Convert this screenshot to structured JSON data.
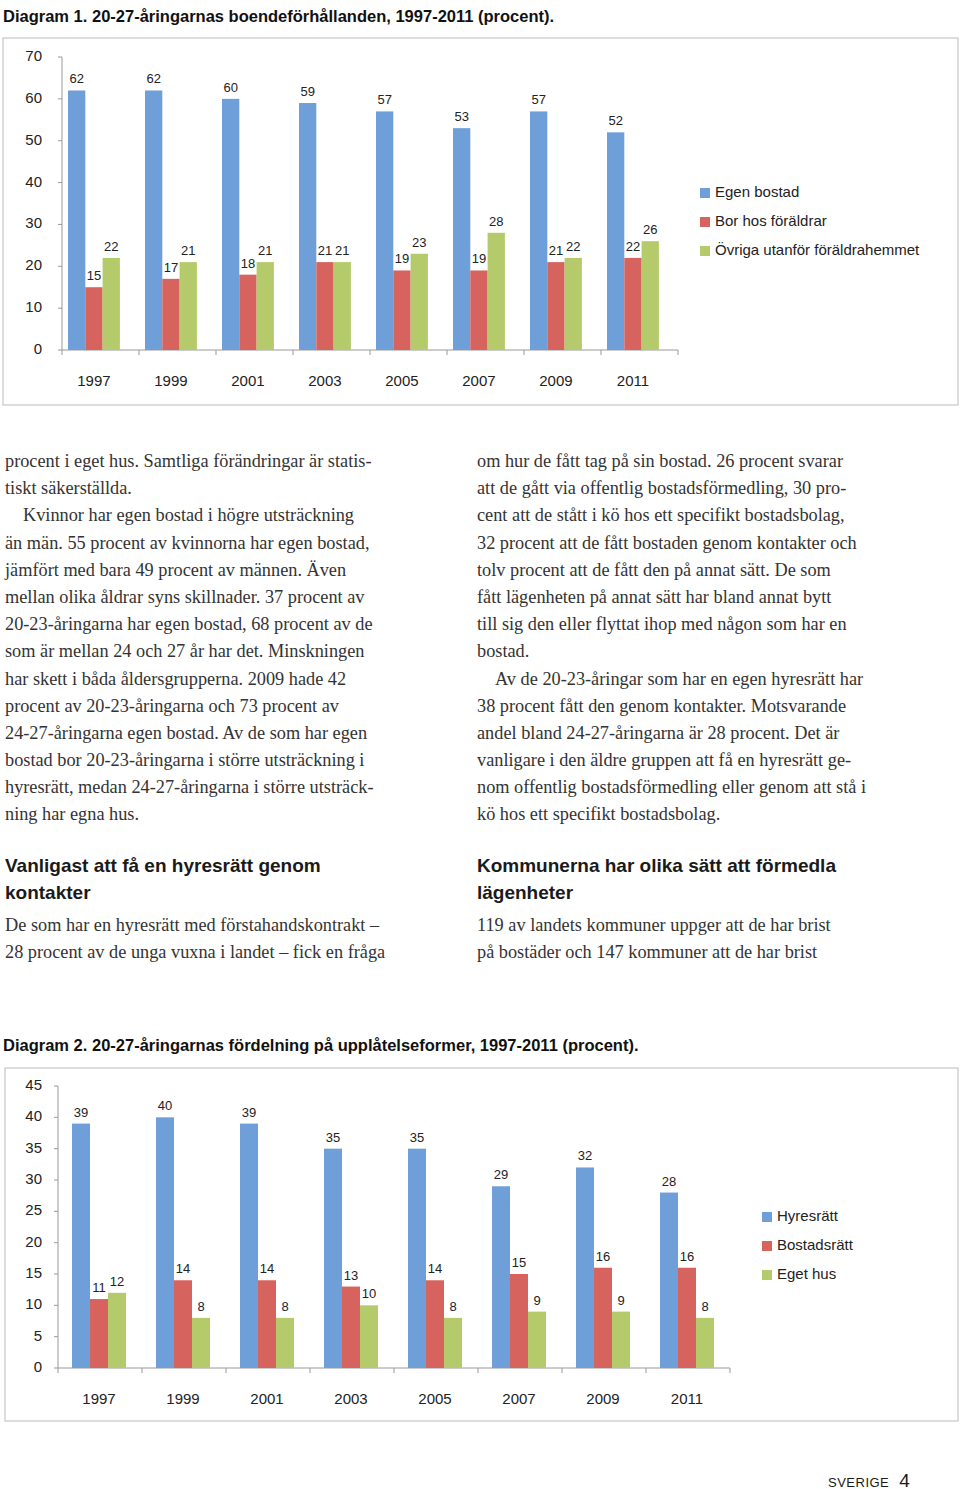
{
  "chart_data": [
    {
      "type": "bar",
      "title": "Diagram 1. 20-27-åringarnas boendeförhållanden, 1997-2011 (procent).",
      "categories": [
        "1997",
        "1999",
        "2001",
        "2003",
        "2005",
        "2007",
        "2009",
        "2011"
      ],
      "series": [
        {
          "name": "Egen bostad",
          "color": "#6f9fd8",
          "values": [
            62,
            62,
            60,
            59,
            57,
            53,
            57,
            52
          ]
        },
        {
          "name": "Bor hos föräldrar",
          "color": "#d7635e",
          "values": [
            15,
            17,
            18,
            21,
            19,
            19,
            21,
            22
          ]
        },
        {
          "name": "Övriga utanför föräldrahemmet",
          "color": "#b5cb6b",
          "values": [
            22,
            21,
            21,
            21,
            23,
            28,
            22,
            26
          ]
        }
      ],
      "ylim": [
        0,
        70
      ],
      "yticks": [
        0,
        10,
        20,
        30,
        40,
        50,
        60,
        70
      ],
      "grid": false,
      "legend": "right",
      "data_labels": true
    },
    {
      "type": "bar",
      "title": "Diagram 2. 20-27-åringarnas fördelning på upplåtelseformer, 1997-2011 (procent).",
      "categories": [
        "1997",
        "1999",
        "2001",
        "2003",
        "2005",
        "2007",
        "2009",
        "2011"
      ],
      "series": [
        {
          "name": "Hyresrätt",
          "color": "#6f9fd8",
          "values": [
            39,
            40,
            39,
            35,
            35,
            29,
            32,
            28
          ]
        },
        {
          "name": "Bostadsrätt",
          "color": "#d7635e",
          "values": [
            11,
            14,
            14,
            13,
            14,
            15,
            16,
            16
          ]
        },
        {
          "name": "Eget hus",
          "color": "#b5cb6b",
          "values": [
            12,
            8,
            8,
            10,
            8,
            9,
            9,
            8
          ]
        }
      ],
      "ylim": [
        0,
        45
      ],
      "yticks": [
        0,
        5,
        10,
        15,
        20,
        25,
        30,
        35,
        40,
        45
      ],
      "grid": false,
      "legend": "right",
      "data_labels": true
    }
  ],
  "columns": [
    {
      "blocks": [
        {
          "type": "paragraph",
          "indent": false,
          "lines": [
            "procent i eget hus. Samtliga förändringar är statis-",
            "tiskt säkerställda."
          ]
        },
        {
          "type": "paragraph",
          "indent": true,
          "lines": [
            "Kvinnor har egen bostad i högre utsträckning",
            "än män. 55 procent av kvinnorna har egen bostad,",
            "jämfört med bara 49 procent av männen. Även",
            "mellan olika åldrar syns skillnader. 37 procent av",
            "20-23-åringarna har egen bostad, 68 procent av de",
            "som är mellan 24 och 27 år har det. Minskningen",
            "har skett i båda åldersgrupperna. 2009 hade 42",
            "procent av 20-23-åringarna och 73 procent av",
            "24-27-åringarna egen bostad. Av de som har egen",
            "bostad bor 20-23-åringarna i större utsträckning i",
            "hyresrätt, medan 24-27-åringarna i större utsträck-",
            "ning har egna hus."
          ]
        },
        {
          "type": "heading",
          "lines": [
            "Vanligast att få en hyresrätt genom",
            "kontakter"
          ]
        },
        {
          "type": "paragraph",
          "indent": false,
          "lines": [
            "De som har en hyresrätt med förstahandskontrakt –",
            "28 procent av de unga vuxna i landet – fick en fråga"
          ]
        }
      ]
    },
    {
      "blocks": [
        {
          "type": "paragraph",
          "indent": false,
          "lines": [
            "om hur de fått tag på sin bostad. 26 procent svarar",
            "att de gått via offentlig bostadsförmedling, 30 pro-",
            "cent att de stått i kö hos ett specifikt bostadsbolag,",
            "32 procent att de fått bostaden genom kontakter och",
            "tolv procent att de fått den på annat sätt. De som",
            "fått lägenheten på annat sätt har bland annat bytt",
            "till sig den eller flyttat ihop med någon som har en",
            "bostad."
          ]
        },
        {
          "type": "paragraph",
          "indent": true,
          "lines": [
            "Av de 20-23-åringar som har en egen hyresrätt har",
            "38 procent fått den genom kontakter. Motsvarande",
            "andel bland 24-27-åringarna är 28 procent. Det är",
            "vanligare i den äldre gruppen att få en hyresrätt ge-",
            "nom offentlig bostadsförmedling eller genom att stå i",
            "kö hos ett specifikt bostadsbolag."
          ]
        },
        {
          "type": "heading",
          "lines": [
            "Kommunerna har olika sätt att förmedla",
            "lägenheter"
          ]
        },
        {
          "type": "paragraph",
          "indent": false,
          "lines": [
            "119 av landets kommuner uppger att de har brist",
            "på bostäder och 147 kommuner att de har brist"
          ]
        }
      ]
    }
  ],
  "footer": {
    "section": "SVERIGE",
    "page": 4
  }
}
